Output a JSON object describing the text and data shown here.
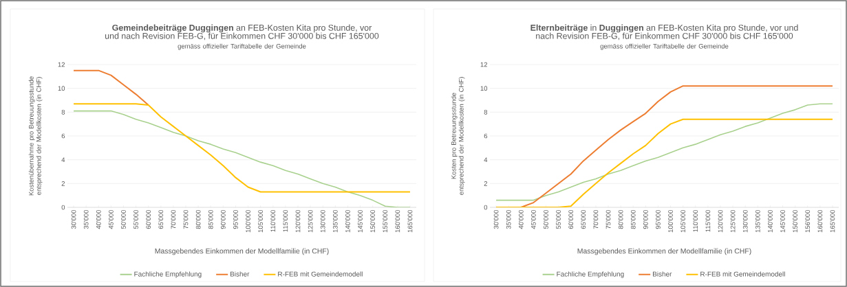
{
  "chart_data": [
    {
      "type": "line",
      "title": "**Gemeindebeiträge Duggingen** an FEB-Kosten Kita pro Stunde, vor und nach Revision FEB-G, für Einkommen CHF 30'000 bis CHF 165'000",
      "subtitle": "gemäss offizieller Tariftabelle der Gemeinde",
      "xlabel": "Massgebendes Einkommen der Modellfamilie (in CHF)",
      "ylabel": "Kostenübernahme pro Betreuungsstunde entsprechend der Modellkosten (in CHF)",
      "categories": [
        "30'000",
        "35'000",
        "40'000",
        "45'000",
        "50'000",
        "55'000",
        "60'000",
        "65'000",
        "70'000",
        "75'000",
        "80'000",
        "85'000",
        "90'000",
        "95'000",
        "100'000",
        "105'000",
        "110'000",
        "115'000",
        "120'000",
        "125'000",
        "130'000",
        "135'000",
        "140'000",
        "145'000",
        "150'000",
        "155'000",
        "160'000",
        "165'000"
      ],
      "ylim": [
        0,
        12
      ],
      "yticks": [
        0,
        2,
        4,
        6,
        8,
        10,
        12
      ],
      "grid": "y",
      "legend": "bottom",
      "marker": "none",
      "line_style": "solid",
      "series": [
        {
          "name": "Fachliche Empfehlung",
          "color": "#a9d18e",
          "values": [
            8.1,
            8.1,
            8.1,
            8.1,
            7.8,
            7.4,
            7.1,
            6.7,
            6.3,
            6.0,
            5.6,
            5.3,
            4.9,
            4.6,
            4.2,
            3.8,
            3.5,
            3.1,
            2.8,
            2.4,
            2.0,
            1.7,
            1.3,
            1.0,
            0.6,
            0.1,
            0,
            0
          ]
        },
        {
          "name": "Bisher",
          "color": "#ed7d31",
          "values": [
            11.5,
            11.5,
            11.5,
            11.1,
            10.3,
            9.5,
            8.6,
            null,
            null,
            null,
            null,
            null,
            null,
            null,
            null,
            null,
            null,
            null,
            null,
            null,
            null,
            null,
            null,
            null,
            null,
            null,
            null,
            null
          ]
        },
        {
          "name": "R-FEB mit Gemeindemodell",
          "color": "#ffc000",
          "values": [
            8.7,
            8.7,
            8.7,
            8.7,
            8.7,
            8.7,
            8.6,
            7.6,
            6.8,
            6.0,
            5.2,
            4.4,
            3.5,
            2.5,
            1.7,
            1.3,
            1.3,
            1.3,
            1.3,
            1.3,
            1.3,
            1.3,
            1.3,
            1.3,
            1.3,
            1.3,
            1.3,
            1.3
          ]
        }
      ]
    },
    {
      "type": "line",
      "title": "**Elternbeiträge** in **Duggingen** an FEB-Kosten Kita pro Stunde, vor und nach Revision FEB-G, für Einkommen CHF 30'000 bis CHF 165'000",
      "subtitle": "gemäss offizieller Tariftabelle der Gemeinde",
      "xlabel": "Massgebendes Einkommen der Modellfamilie (in CHF)",
      "ylabel": "Kosten pro Betreuungsstunde entsprechend der Modellkosten (in CHF)",
      "categories": [
        "30'000",
        "35'000",
        "40'000",
        "45'000",
        "50'000",
        "55'000",
        "60'000",
        "65'000",
        "70'000",
        "75'000",
        "80'000",
        "85'000",
        "90'000",
        "95'000",
        "100'000",
        "105'000",
        "110'000",
        "115'000",
        "120'000",
        "125'000",
        "130'000",
        "135'000",
        "140'000",
        "145'000",
        "150'000",
        "156'000",
        "160'000",
        "165'000"
      ],
      "ylim": [
        0,
        12
      ],
      "yticks": [
        0,
        2,
        4,
        6,
        8,
        10,
        12
      ],
      "grid": "y",
      "legend": "bottom",
      "marker": "none",
      "line_style": "solid",
      "series": [
        {
          "name": "Fachliche Empfehlung",
          "color": "#a9d18e",
          "values": [
            0.6,
            0.6,
            0.6,
            0.6,
            1.0,
            1.3,
            1.7,
            2.1,
            2.4,
            2.8,
            3.1,
            3.5,
            3.9,
            4.2,
            4.6,
            5.0,
            5.3,
            5.7,
            6.1,
            6.4,
            6.8,
            7.1,
            7.5,
            7.9,
            8.2,
            8.6,
            8.7,
            8.7
          ]
        },
        {
          "name": "Bisher",
          "color": "#ed7d31",
          "values": [
            0,
            0,
            0,
            0.4,
            1.2,
            2.0,
            2.8,
            3.9,
            4.8,
            5.7,
            6.5,
            7.2,
            7.9,
            8.9,
            9.7,
            10.2,
            10.2,
            10.2,
            10.2,
            10.2,
            10.2,
            10.2,
            10.2,
            10.2,
            10.2,
            10.2,
            10.2,
            10.2
          ]
        },
        {
          "name": "R-FEB mit Gemeindemodell",
          "color": "#ffc000",
          "values": [
            0,
            0,
            0,
            0,
            0,
            0,
            0.1,
            1.1,
            2.0,
            2.9,
            3.7,
            4.5,
            5.2,
            6.2,
            7.0,
            7.4,
            7.4,
            7.4,
            7.4,
            7.4,
            7.4,
            7.4,
            7.4,
            7.4,
            7.4,
            7.4,
            7.4,
            7.4
          ]
        }
      ]
    }
  ]
}
